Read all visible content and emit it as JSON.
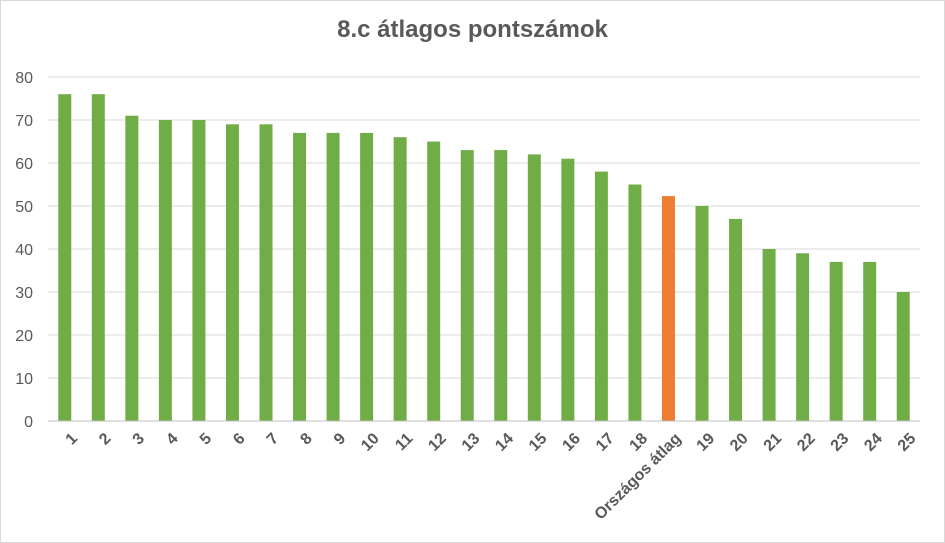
{
  "chart_data": {
    "type": "bar",
    "title": "8.c átlagos pontszámok",
    "xlabel": "",
    "ylabel": "",
    "ylim": [
      0,
      80
    ],
    "yticks": [
      0,
      10,
      20,
      30,
      40,
      50,
      60,
      70,
      80
    ],
    "grid": true,
    "legend": "none",
    "categories": [
      "1",
      "2",
      "3",
      "4",
      "5",
      "6",
      "7",
      "8",
      "9",
      "10",
      "11",
      "12",
      "13",
      "14",
      "15",
      "16",
      "17",
      "18",
      "Országos átlag",
      "19",
      "20",
      "21",
      "22",
      "23",
      "24",
      "25"
    ],
    "values": [
      76,
      76,
      71,
      70,
      70,
      69,
      69,
      67,
      67,
      67,
      66,
      65,
      63,
      63,
      62,
      61,
      58,
      55,
      52.3,
      50,
      47,
      40,
      39,
      37,
      37,
      30
    ],
    "colors": {
      "default": "#70ad47",
      "highlight": "#ed7d31",
      "highlight_category": "Országos átlag"
    }
  }
}
